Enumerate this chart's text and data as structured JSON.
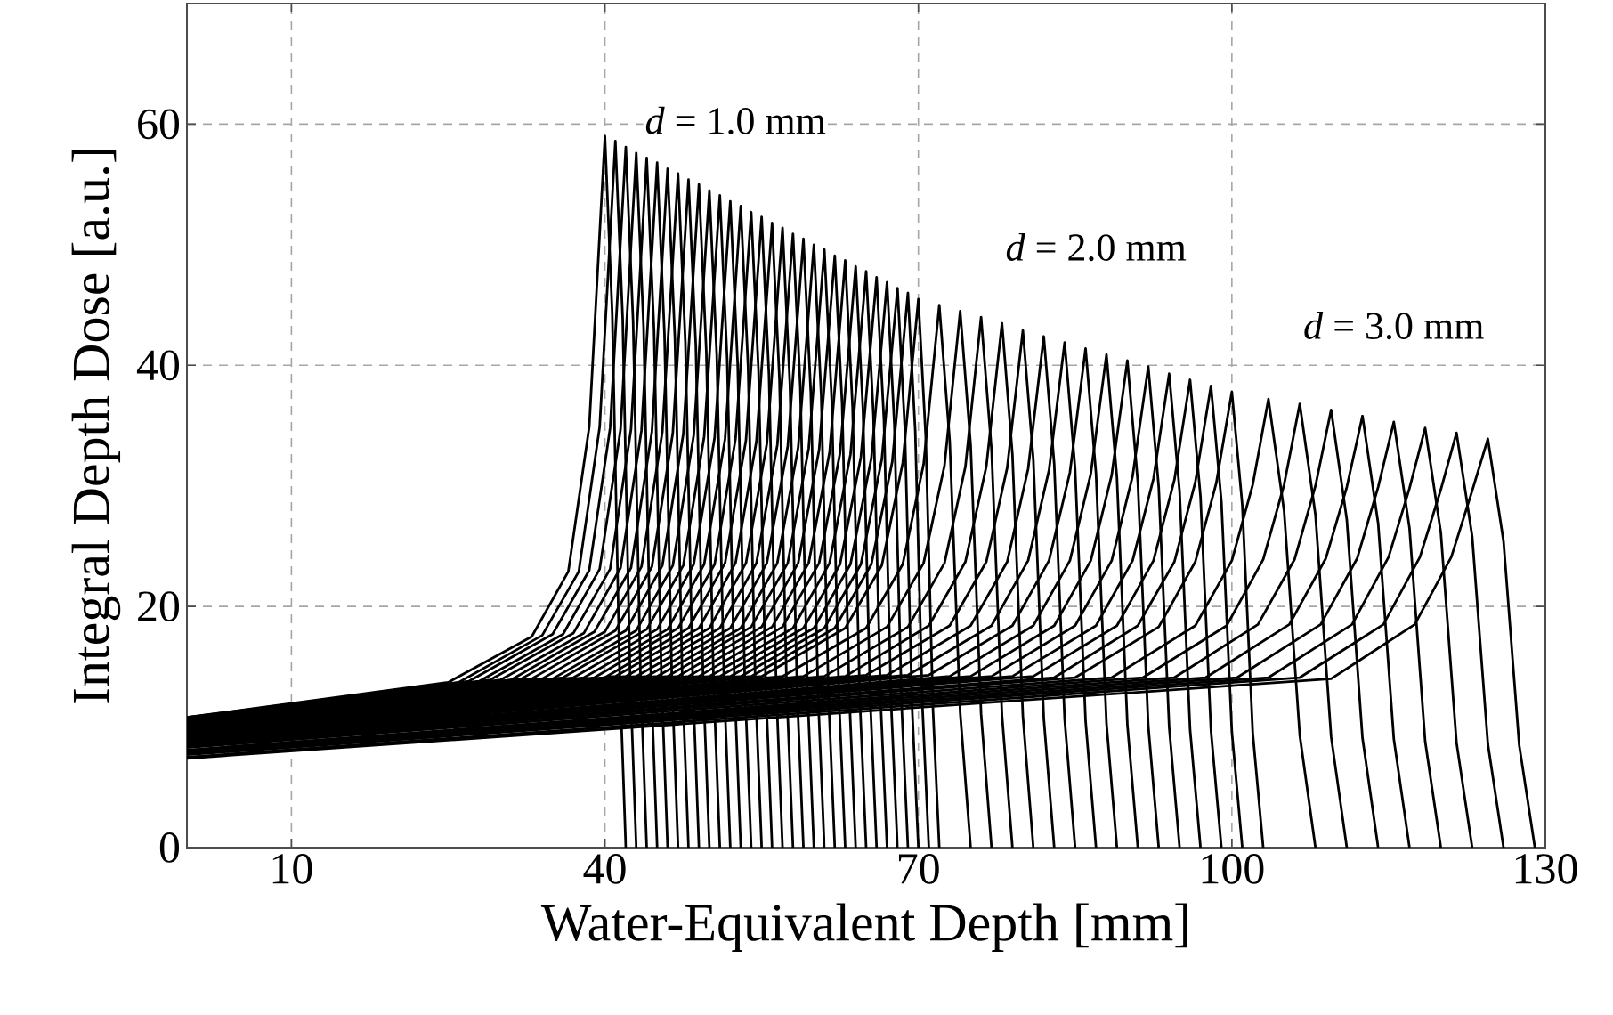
{
  "chart_data": {
    "type": "line",
    "xlabel": "Water-Equivalent Depth [mm]",
    "ylabel": "Integral Depth Dose [a.u.]",
    "xlim": [
      0,
      130
    ],
    "ylim": [
      0,
      70
    ],
    "xticks": [
      10,
      40,
      70,
      100,
      130
    ],
    "yticks": [
      0,
      20,
      40,
      60
    ],
    "grid": true,
    "line_style": "solid",
    "annotations": [
      "*d* = 1.0 mm",
      "*d* = 2.0 mm",
      "*d* = 3.0 mm"
    ],
    "series": [
      {
        "color": "#000000",
        "x": [
          0,
          25,
          33,
          36.5,
          38.5,
          40,
          40.7,
          41.4,
          42
        ],
        "values": [
          10.8,
          13.7,
          17.5,
          22.9,
          34.9,
          59.0,
          44.3,
          14.8,
          0
        ]
      },
      {
        "color": "#000000",
        "x": [
          0,
          26,
          34,
          37.5,
          39.5,
          41,
          41.7,
          42.4,
          43
        ],
        "values": [
          10.8,
          13.7,
          17.6,
          22.9,
          34.9,
          58.6,
          43.9,
          14.6,
          0
        ]
      },
      {
        "color": "#000000",
        "x": [
          0,
          27,
          35,
          38.5,
          40.5,
          42,
          42.7,
          43.4,
          44
        ],
        "values": [
          10.7,
          13.8,
          17.7,
          23.0,
          34.8,
          58.1,
          43.6,
          14.5,
          0
        ]
      },
      {
        "color": "#000000",
        "x": [
          0,
          28,
          36,
          39.5,
          41.5,
          43,
          43.7,
          44.4,
          45
        ],
        "values": [
          10.7,
          13.8,
          17.7,
          23.1,
          34.7,
          57.6,
          43.2,
          14.4,
          0
        ]
      },
      {
        "color": "#000000",
        "x": [
          0,
          29,
          37,
          40.5,
          42.5,
          44,
          44.7,
          45.4,
          46
        ],
        "values": [
          10.6,
          13.9,
          17.8,
          23.1,
          34.7,
          57.2,
          42.9,
          14.3,
          0
        ]
      },
      {
        "color": "#000000",
        "x": [
          0,
          30,
          38,
          41.5,
          43.5,
          45,
          45.7,
          46.4,
          47
        ],
        "values": [
          10.6,
          13.9,
          17.8,
          23.2,
          34.6,
          56.8,
          42.6,
          14.2,
          0
        ]
      },
      {
        "color": "#000000",
        "x": [
          0,
          31,
          39,
          42.5,
          44.5,
          46,
          46.7,
          47.4,
          48
        ],
        "values": [
          10.6,
          13.9,
          17.9,
          23.2,
          34.5,
          56.3,
          42.2,
          14.1,
          0
        ]
      },
      {
        "color": "#000000",
        "x": [
          0,
          32,
          40,
          43.5,
          45.5,
          47,
          47.7,
          48.4,
          49
        ],
        "values": [
          10.5,
          14.0,
          17.9,
          23.3,
          34.5,
          55.9,
          41.9,
          14.0,
          0
        ]
      },
      {
        "color": "#000000",
        "x": [
          0,
          33,
          41,
          44.5,
          46.5,
          48,
          48.7,
          49.4,
          50
        ],
        "values": [
          10.5,
          14.0,
          18.0,
          23.3,
          34.4,
          55.4,
          41.6,
          13.9,
          0
        ]
      },
      {
        "color": "#000000",
        "x": [
          0,
          34,
          42,
          45.5,
          47.5,
          49,
          49.7,
          50.4,
          51
        ],
        "values": [
          10.4,
          14.0,
          18.0,
          23.4,
          34.3,
          55.0,
          41.2,
          13.7,
          0
        ]
      },
      {
        "color": "#000000",
        "x": [
          0,
          35,
          43,
          46.5,
          48.5,
          50,
          50.7,
          51.4,
          52
        ],
        "values": [
          10.4,
          14.0,
          18.0,
          23.4,
          34.2,
          54.5,
          40.9,
          13.6,
          0
        ]
      },
      {
        "color": "#000000",
        "x": [
          0,
          36,
          44,
          47.5,
          49.5,
          51,
          51.7,
          52.4,
          53
        ],
        "values": [
          10.4,
          14.1,
          18.1,
          23.4,
          34.1,
          54.1,
          40.5,
          13.5,
          0
        ]
      },
      {
        "color": "#000000",
        "x": [
          0,
          37,
          45,
          48.5,
          50.5,
          52,
          52.7,
          53.4,
          54
        ],
        "values": [
          10.3,
          14.1,
          18.1,
          23.5,
          34.0,
          53.6,
          40.2,
          13.4,
          0
        ]
      },
      {
        "color": "#000000",
        "x": [
          0,
          38,
          46,
          49.5,
          51.5,
          53,
          53.7,
          54.4,
          55
        ],
        "values": [
          10.3,
          14.1,
          18.1,
          23.5,
          33.9,
          53.2,
          39.9,
          13.3,
          0
        ]
      },
      {
        "color": "#000000",
        "x": [
          0,
          39,
          47,
          50.5,
          52.5,
          54,
          54.7,
          55.4,
          56
        ],
        "values": [
          10.2,
          14.1,
          18.2,
          23.5,
          33.9,
          52.7,
          39.5,
          13.2,
          0
        ]
      },
      {
        "color": "#000000",
        "x": [
          0,
          40,
          48,
          51.5,
          53.5,
          55,
          55.7,
          56.4,
          57
        ],
        "values": [
          10.2,
          14.1,
          18.2,
          23.6,
          33.8,
          52.3,
          39.2,
          13.1,
          0
        ]
      },
      {
        "color": "#000000",
        "x": [
          0,
          41,
          49,
          52.5,
          54.5,
          56,
          56.7,
          57.4,
          58
        ],
        "values": [
          10.2,
          14.2,
          18.2,
          23.6,
          33.7,
          51.8,
          38.9,
          13.0,
          0
        ]
      },
      {
        "color": "#000000",
        "x": [
          0,
          42,
          50,
          53.5,
          55.5,
          57,
          57.7,
          58.4,
          59
        ],
        "values": [
          10.1,
          14.2,
          18.2,
          23.6,
          33.5,
          51.4,
          38.5,
          12.8,
          0
        ]
      },
      {
        "color": "#000000",
        "x": [
          0,
          43,
          51,
          54.5,
          56.5,
          58,
          58.7,
          59.4,
          60
        ],
        "values": [
          10.1,
          14.2,
          18.2,
          23.6,
          33.4,
          50.9,
          38.2,
          12.7,
          0
        ]
      },
      {
        "color": "#000000",
        "x": [
          0,
          44,
          52,
          55.5,
          57.5,
          59,
          59.7,
          60.4,
          61
        ],
        "values": [
          10.0,
          14.2,
          18.2,
          23.6,
          33.3,
          50.5,
          37.8,
          12.6,
          0
        ]
      },
      {
        "color": "#000000",
        "x": [
          0,
          45,
          53,
          56.5,
          58.5,
          60,
          60.7,
          61.4,
          62
        ],
        "values": [
          10.0,
          14.2,
          18.2,
          23.6,
          33.2,
          50.0,
          37.5,
          12.5,
          0
        ]
      },
      {
        "color": "#000000",
        "x": [
          0,
          46,
          54,
          57.5,
          59.5,
          61,
          61.7,
          62.4,
          63
        ],
        "values": [
          10.0,
          14.2,
          18.3,
          23.6,
          33.1,
          49.6,
          37.2,
          12.4,
          0
        ]
      },
      {
        "color": "#000000",
        "x": [
          0,
          47,
          55,
          58.5,
          60.5,
          62,
          62.7,
          63.4,
          64
        ],
        "values": [
          9.9,
          14.2,
          18.3,
          23.6,
          33.0,
          49.1,
          36.8,
          12.3,
          0
        ]
      },
      {
        "color": "#000000",
        "x": [
          0,
          48,
          56,
          59.5,
          61.5,
          63,
          63.7,
          64.4,
          65
        ],
        "values": [
          9.9,
          14.2,
          18.3,
          23.6,
          32.8,
          48.7,
          36.5,
          12.2,
          0
        ]
      },
      {
        "color": "#000000",
        "x": [
          0,
          49,
          57,
          60.5,
          62.5,
          64,
          64.7,
          65.4,
          66
        ],
        "values": [
          9.8,
          14.2,
          18.3,
          23.6,
          32.7,
          48.2,
          36.2,
          12.1,
          0
        ]
      },
      {
        "color": "#000000",
        "x": [
          0,
          50,
          58,
          61.5,
          63.5,
          65,
          65.7,
          66.4,
          67
        ],
        "values": [
          9.8,
          14.2,
          18.2,
          23.6,
          32.6,
          47.8,
          35.8,
          11.9,
          0
        ]
      },
      {
        "color": "#000000",
        "x": [
          0,
          51,
          59,
          62.5,
          64.5,
          66,
          66.7,
          67.4,
          68
        ],
        "values": [
          9.8,
          14.2,
          18.2,
          23.5,
          32.4,
          47.3,
          35.5,
          11.8,
          0
        ]
      },
      {
        "color": "#000000",
        "x": [
          0,
          52,
          60,
          63.5,
          65.5,
          67,
          67.7,
          68.4,
          69
        ],
        "values": [
          9.7,
          14.2,
          18.2,
          23.5,
          32.3,
          46.9,
          35.1,
          11.7,
          0
        ]
      },
      {
        "color": "#000000",
        "x": [
          0,
          53,
          61,
          64.5,
          66.5,
          68,
          68.7,
          69.4,
          70
        ],
        "values": [
          9.7,
          14.2,
          18.2,
          23.5,
          32.2,
          46.4,
          34.8,
          11.6,
          0
        ]
      },
      {
        "color": "#000000",
        "x": [
          0,
          54,
          62,
          65.5,
          67.5,
          69,
          69.7,
          70.4,
          71
        ],
        "values": [
          9.6,
          14.2,
          18.2,
          23.5,
          32.0,
          46.0,
          34.5,
          11.5,
          0
        ]
      },
      {
        "color": "#000000",
        "x": [
          0,
          55,
          63,
          66.5,
          68.5,
          70,
          70.7,
          71.4,
          72
        ],
        "values": [
          9.6,
          14.2,
          18.2,
          23.4,
          31.9,
          45.5,
          34.1,
          11.4,
          0
        ]
      },
      {
        "color": "#000000",
        "x": [
          0,
          57,
          65,
          68.5,
          70.5,
          72,
          73,
          74,
          75
        ],
        "values": [
          9.5,
          14.2,
          18.2,
          23.5,
          31.8,
          45.0,
          33.7,
          11.2,
          0
        ]
      },
      {
        "color": "#000000",
        "x": [
          0,
          59,
          67,
          70.5,
          72.5,
          74,
          75,
          76,
          77
        ],
        "values": [
          9.4,
          14.2,
          18.3,
          23.6,
          31.7,
          44.5,
          33.4,
          11.1,
          0
        ]
      },
      {
        "color": "#000000",
        "x": [
          0,
          61,
          69,
          72.5,
          74.5,
          76,
          77,
          78,
          79
        ],
        "values": [
          9.4,
          14.2,
          18.3,
          23.6,
          31.6,
          44.0,
          33.0,
          11.0,
          0
        ]
      },
      {
        "color": "#000000",
        "x": [
          0,
          63,
          71,
          74.5,
          76.5,
          78,
          79,
          80,
          81
        ],
        "values": [
          9.3,
          14.2,
          18.4,
          23.7,
          31.6,
          43.5,
          32.6,
          10.9,
          0
        ]
      },
      {
        "color": "#000000",
        "x": [
          0,
          65,
          73,
          76.5,
          78.5,
          80,
          81,
          82,
          83
        ],
        "values": [
          9.2,
          14.3,
          18.4,
          23.7,
          31.5,
          42.9,
          32.2,
          10.7,
          0
        ]
      },
      {
        "color": "#000000",
        "x": [
          0,
          67,
          75,
          78.5,
          80.5,
          82,
          83,
          84,
          85
        ],
        "values": [
          9.1,
          14.3,
          18.4,
          23.7,
          31.4,
          42.4,
          31.8,
          10.6,
          0
        ]
      },
      {
        "color": "#000000",
        "x": [
          0,
          69,
          77,
          80.5,
          82.5,
          84,
          85,
          86,
          87
        ],
        "values": [
          9.0,
          14.3,
          18.4,
          23.8,
          31.3,
          41.9,
          31.4,
          10.5,
          0
        ]
      },
      {
        "color": "#000000",
        "x": [
          0,
          71,
          79,
          82.5,
          84.5,
          86,
          87,
          88,
          89
        ],
        "values": [
          9.0,
          14.3,
          18.4,
          23.8,
          31.1,
          41.4,
          31.0,
          10.3,
          0
        ]
      },
      {
        "color": "#000000",
        "x": [
          0,
          73,
          81,
          84.5,
          86.5,
          88,
          89,
          90,
          91
        ],
        "values": [
          8.9,
          14.2,
          18.4,
          23.8,
          31.0,
          40.9,
          30.7,
          10.2,
          0
        ]
      },
      {
        "color": "#000000",
        "x": [
          0,
          75,
          83,
          86.5,
          88.5,
          90,
          91,
          92,
          93
        ],
        "values": [
          8.8,
          14.2,
          18.4,
          23.8,
          30.9,
          40.4,
          30.3,
          10.1,
          0
        ]
      },
      {
        "color": "#000000",
        "x": [
          0,
          77,
          85,
          88.5,
          90.5,
          92,
          93,
          94,
          95
        ],
        "values": [
          8.7,
          14.2,
          18.4,
          23.8,
          30.8,
          39.9,
          29.9,
          10.0,
          0
        ]
      },
      {
        "color": "#000000",
        "x": [
          0,
          79,
          87,
          90.5,
          92.5,
          94,
          95,
          96,
          97
        ],
        "values": [
          8.6,
          14.2,
          18.4,
          23.8,
          30.6,
          39.3,
          29.5,
          9.8,
          0
        ]
      },
      {
        "color": "#000000",
        "x": [
          0,
          81,
          89,
          92.5,
          94.5,
          96,
          97,
          98,
          99
        ],
        "values": [
          8.6,
          14.2,
          18.4,
          23.8,
          30.5,
          38.8,
          29.1,
          9.7,
          0
        ]
      },
      {
        "color": "#000000",
        "x": [
          0,
          83,
          91,
          94.5,
          96.5,
          98,
          99,
          100,
          101
        ],
        "values": [
          8.5,
          14.1,
          18.4,
          23.7,
          30.3,
          38.3,
          28.7,
          9.6,
          0
        ]
      },
      {
        "color": "#000000",
        "x": [
          0,
          85,
          93,
          96.5,
          98.5,
          100,
          101,
          102,
          103
        ],
        "values": [
          8.4,
          14.1,
          18.3,
          23.7,
          30.2,
          37.8,
          28.4,
          9.5,
          0
        ]
      },
      {
        "color": "#000000",
        "x": [
          0,
          88.5,
          96.5,
          100,
          102,
          103.5,
          105,
          106.5,
          108
        ],
        "values": [
          8.3,
          14.1,
          18.4,
          23.8,
          30.1,
          37.2,
          27.9,
          9.3,
          0
        ]
      },
      {
        "color": "#000000",
        "x": [
          0,
          91.5,
          99.5,
          103,
          105,
          106.5,
          108,
          109.5,
          111
        ],
        "values": [
          8.1,
          14.1,
          18.4,
          23.9,
          30.1,
          36.8,
          27.6,
          9.2,
          0
        ]
      },
      {
        "color": "#000000",
        "x": [
          0,
          94.5,
          102.5,
          106,
          108,
          109.5,
          111,
          112.5,
          114
        ],
        "values": [
          8.0,
          14.1,
          18.5,
          23.9,
          30.0,
          36.3,
          27.2,
          9.1,
          0
        ]
      },
      {
        "color": "#000000",
        "x": [
          0,
          97.5,
          105.5,
          109,
          111,
          112.5,
          114,
          115.5,
          117
        ],
        "values": [
          7.9,
          14.1,
          18.5,
          24.0,
          29.9,
          35.8,
          26.9,
          9.0,
          0
        ]
      },
      {
        "color": "#000000",
        "x": [
          0,
          100.5,
          108.5,
          112,
          114,
          115.5,
          117,
          118.5,
          120
        ],
        "values": [
          7.8,
          14.1,
          18.5,
          24.0,
          29.9,
          35.3,
          26.5,
          8.8,
          0
        ]
      },
      {
        "color": "#000000",
        "x": [
          0,
          103.5,
          111.5,
          115,
          117,
          118.5,
          120,
          121.5,
          123
        ],
        "values": [
          7.7,
          14.1,
          18.5,
          24.1,
          29.8,
          34.8,
          26.1,
          8.7,
          0
        ]
      },
      {
        "color": "#000000",
        "x": [
          0,
          106.5,
          114.5,
          118,
          120,
          121.5,
          123,
          124.5,
          126
        ],
        "values": [
          7.5,
          14.1,
          18.5,
          24.1,
          29.7,
          34.4,
          25.8,
          8.6,
          0
        ]
      },
      {
        "color": "#000000",
        "x": [
          0,
          109.5,
          117.5,
          121,
          123,
          124.5,
          126,
          127.5,
          129
        ],
        "values": [
          7.4,
          14.0,
          18.5,
          24.1,
          29.6,
          33.9,
          25.4,
          8.5,
          0
        ]
      }
    ]
  }
}
